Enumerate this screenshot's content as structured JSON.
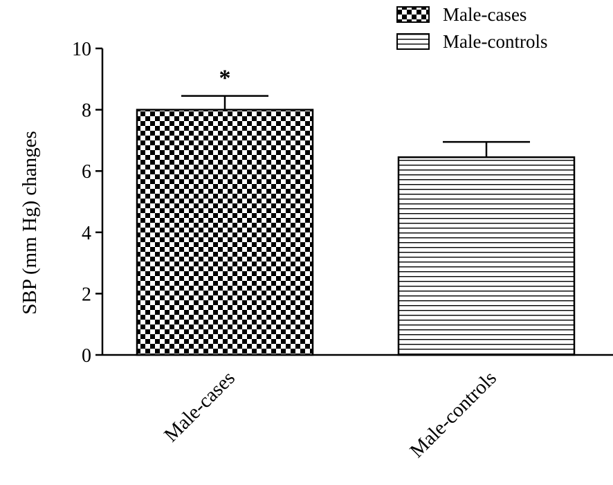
{
  "chart_data": {
    "type": "bar",
    "categories": [
      "Male-cases",
      "Male-controls"
    ],
    "values": [
      8.0,
      6.45
    ],
    "errors": [
      0.45,
      0.5
    ],
    "annotations": [
      "*",
      ""
    ],
    "patterns": [
      "checkerboard",
      "horizontal-lines"
    ],
    "title": "",
    "xlabel": "",
    "ylabel": "SBP (mm Hg) changes",
    "ylim": [
      0,
      10
    ],
    "yticks": [
      0,
      2,
      4,
      6,
      8,
      10
    ],
    "grid": false,
    "legend": {
      "position": "top-right",
      "entries": [
        "Male-cases",
        "Male-controls"
      ]
    }
  }
}
